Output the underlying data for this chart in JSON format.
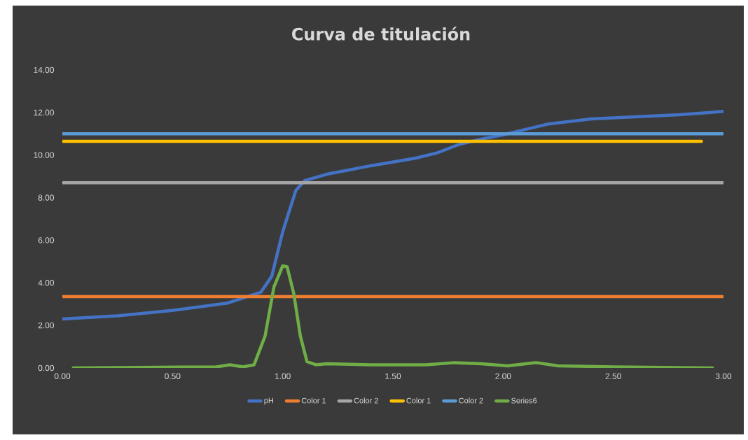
{
  "chart_data": {
    "type": "line",
    "title": "Curva  de titulación",
    "xlim": [
      0,
      3
    ],
    "ylim": [
      0,
      14
    ],
    "xticks": [
      {
        "value": 0,
        "label": "0.00"
      },
      {
        "value": 0.5,
        "label": "0.50"
      },
      {
        "value": 1,
        "label": "1.00"
      },
      {
        "value": 1.5,
        "label": "1.50"
      },
      {
        "value": 2,
        "label": "2.00"
      },
      {
        "value": 2.5,
        "label": "2.50"
      },
      {
        "value": 3,
        "label": "3.00"
      }
    ],
    "yticks": [
      {
        "value": 0,
        "label": "0.00"
      },
      {
        "value": 2,
        "label": "2.00"
      },
      {
        "value": 4,
        "label": "4.00"
      },
      {
        "value": 6,
        "label": "6.00"
      },
      {
        "value": 8,
        "label": "8.00"
      },
      {
        "value": 10,
        "label": "10.00"
      },
      {
        "value": 12,
        "label": "12.00"
      },
      {
        "value": 14,
        "label": "14.00"
      }
    ],
    "grid": false,
    "legend": "bottom",
    "marker": "none",
    "line_style": "solid",
    "series": [
      {
        "name": "pH",
        "color": "#4472c4",
        "x": [
          0,
          0.25,
          0.5,
          0.75,
          0.9,
          0.95,
          1.0,
          1.06,
          1.1,
          1.2,
          1.4,
          1.6,
          1.7,
          1.8,
          1.9,
          2.0,
          2.1,
          2.2,
          2.4,
          2.6,
          2.8,
          3.0
        ],
        "values": [
          2.3,
          2.45,
          2.7,
          3.05,
          3.55,
          4.3,
          6.4,
          8.35,
          8.8,
          9.1,
          9.5,
          9.85,
          10.1,
          10.5,
          10.75,
          10.95,
          11.2,
          11.45,
          11.7,
          11.8,
          11.9,
          12.05
        ]
      },
      {
        "name": "Color 1",
        "color": "#ed7d31",
        "x": [
          0,
          3
        ],
        "values": [
          3.35,
          3.35
        ]
      },
      {
        "name": "Color 2",
        "color": "#a5a5a5",
        "x": [
          0,
          3
        ],
        "values": [
          8.7,
          8.7
        ]
      },
      {
        "name": "Color 1",
        "color": "#ffc000",
        "x": [
          0,
          2.9
        ],
        "values": [
          10.65,
          10.65
        ]
      },
      {
        "name": "Color 2",
        "color": "#5b9bd5",
        "x": [
          0,
          3
        ],
        "values": [
          11.0,
          11.0
        ]
      },
      {
        "name": "Series6",
        "color": "#70ad47",
        "x": [
          0.05,
          0.7,
          0.76,
          0.82,
          0.87,
          0.92,
          0.96,
          1.0,
          1.02,
          1.05,
          1.08,
          1.11,
          1.15,
          1.2,
          1.4,
          1.65,
          1.78,
          1.9,
          2.02,
          2.15,
          2.25,
          2.5,
          2.95
        ],
        "values": [
          0,
          0.05,
          0.15,
          0.05,
          0.15,
          1.5,
          3.8,
          4.8,
          4.75,
          3.5,
          1.5,
          0.3,
          0.15,
          0.2,
          0.15,
          0.15,
          0.25,
          0.2,
          0.1,
          0.25,
          0.1,
          0.05,
          0
        ]
      }
    ]
  }
}
